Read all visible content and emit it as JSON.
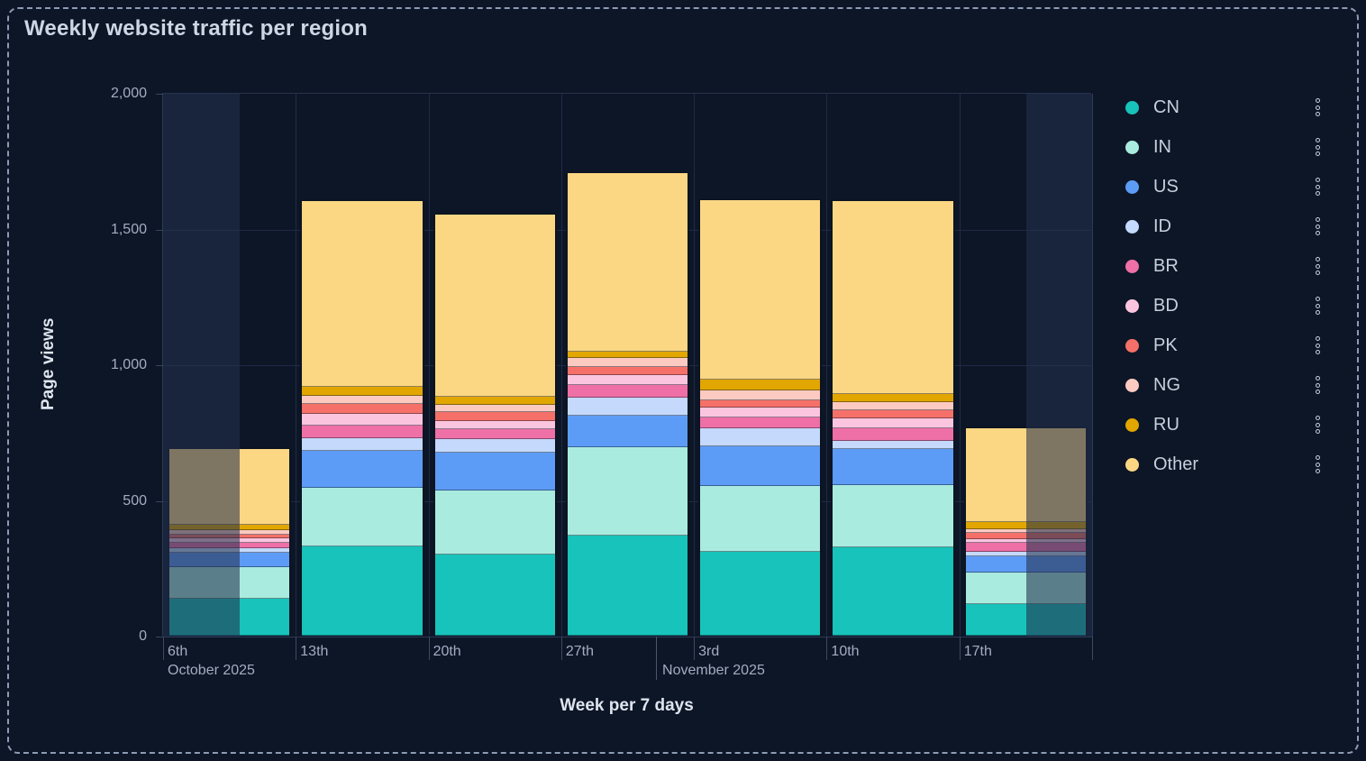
{
  "panel": {
    "title": "Weekly website traffic per region"
  },
  "colors": {
    "background": "#0d1626",
    "frame_border": "#8c9bb5",
    "grid": "#1e2b47",
    "axis_line": "#2c3a58",
    "text_muted": "#a2adc3",
    "text_bright": "#dfe5ef",
    "out_of_range_overlay": "rgba(35,48,76,0.58)"
  },
  "chart_data": {
    "type": "bar",
    "stacked": true,
    "title": "Weekly website traffic per region",
    "xlabel": "Week per 7 days",
    "ylabel": "Page views",
    "ylim": [
      0,
      2000
    ],
    "y_ticks": [
      0,
      500,
      1000,
      1500,
      2000
    ],
    "y_tick_labels": [
      "0",
      "500",
      "1,000",
      "1,500",
      "2,000"
    ],
    "grid": true,
    "legend_position": "right",
    "categories": [
      "6th",
      "13th",
      "20th",
      "27th",
      "3rd",
      "10th",
      "17th"
    ],
    "month_captions": {
      "first": "October 2025",
      "second": "November 2025",
      "boundary_after_category_index": 3,
      "boundary_fraction_into_column": 0.714
    },
    "series": [
      {
        "name": "CN",
        "color": "#17c3ba",
        "values": [
          135,
          330,
          300,
          370,
          310,
          324,
          116
        ]
      },
      {
        "name": "IN",
        "color": "#a9ecdf",
        "values": [
          116,
          215,
          235,
          325,
          240,
          229,
          118
        ]
      },
      {
        "name": "US",
        "color": "#5d9cf6",
        "values": [
          53,
          135,
          140,
          116,
          147,
          133,
          58
        ]
      },
      {
        "name": "ID",
        "color": "#c4d9fb",
        "values": [
          17,
          48,
          50,
          66,
          66,
          31,
          17
        ]
      },
      {
        "name": "BR",
        "color": "#ee70a6",
        "values": [
          22,
          46,
          36,
          46,
          41,
          46,
          33
        ]
      },
      {
        "name": "BD",
        "color": "#fcc5df",
        "values": [
          15,
          42,
          30,
          37,
          36,
          37,
          13
        ]
      },
      {
        "name": "PK",
        "color": "#f57069",
        "values": [
          15,
          39,
          33,
          30,
          28,
          32,
          25
        ]
      },
      {
        "name": "NG",
        "color": "#fdcac2",
        "values": [
          15,
          30,
          28,
          33,
          35,
          30,
          13
        ]
      },
      {
        "name": "RU",
        "color": "#e2a600",
        "values": [
          22,
          33,
          28,
          25,
          39,
          30,
          25
        ]
      },
      {
        "name": "Other",
        "color": "#fcd783",
        "values": [
          277,
          682,
          670,
          657,
          663,
          708,
          345
        ]
      }
    ],
    "out_of_range_shading": {
      "first_bar_dim_fraction": 0.58,
      "last_bar_dim_fraction": 0.495
    }
  }
}
